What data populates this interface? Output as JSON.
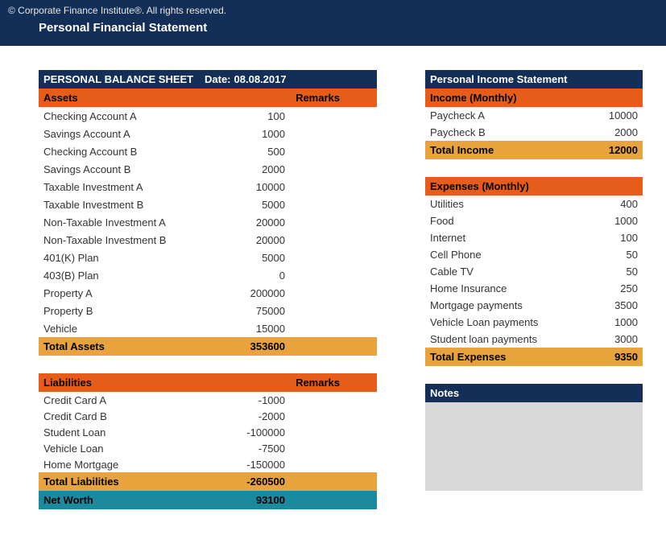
{
  "copyright": "© Corporate Finance Institute®. All rights reserved.",
  "pageTitle": "Personal Financial Statement",
  "balance": {
    "headerLeft": "PERSONAL BALANCE SHEET",
    "headerDatePrefix": "Date:",
    "headerDate": "08.08.2017",
    "assetsHeader": "Assets",
    "remarksHeader": "Remarks",
    "assets": [
      {
        "label": "Checking Account A",
        "value": "100"
      },
      {
        "label": "Savings Account A",
        "value": "1000"
      },
      {
        "label": "Checking Account B",
        "value": "500"
      },
      {
        "label": "Savings Account B",
        "value": "2000"
      },
      {
        "label": "Taxable Investment A",
        "value": "10000"
      },
      {
        "label": "Taxable Investment B",
        "value": "5000"
      },
      {
        "label": "Non-Taxable Investment A",
        "value": "20000"
      },
      {
        "label": "Non-Taxable Investment B",
        "value": "20000"
      },
      {
        "label": "401(K) Plan",
        "value": "5000"
      },
      {
        "label": "403(B) Plan",
        "value": "0"
      },
      {
        "label": "Property A",
        "value": "200000"
      },
      {
        "label": "Property B",
        "value": "75000"
      },
      {
        "label": "Vehicle",
        "value": "15000"
      }
    ],
    "totalAssetsLabel": "Total Assets",
    "totalAssetsValue": "353600",
    "liabilitiesHeader": "Liabilities",
    "liabilities": [
      {
        "label": "Credit Card A",
        "value": "-1000"
      },
      {
        "label": "Credit Card B",
        "value": "-2000"
      },
      {
        "label": "Student Loan",
        "value": "-100000"
      },
      {
        "label": "Vehicle Loan",
        "value": "-7500"
      },
      {
        "label": "Home Mortgage",
        "value": "-150000"
      }
    ],
    "totalLiabilitiesLabel": "Total Liabilities",
    "totalLiabilitiesValue": "-260500",
    "netWorthLabel": "Net Worth",
    "netWorthValue": "93100"
  },
  "income": {
    "header": "Personal Income Statement",
    "incomeHeader": "Income (Monthly)",
    "items": [
      {
        "label": "Paycheck A",
        "value": "10000"
      },
      {
        "label": "Paycheck B",
        "value": "2000"
      }
    ],
    "totalLabel": "Total Income",
    "totalValue": "12000"
  },
  "expenses": {
    "header": "Expenses (Monthly)",
    "items": [
      {
        "label": "Utilities",
        "value": "400"
      },
      {
        "label": "Food",
        "value": "1000"
      },
      {
        "label": "Internet",
        "value": "100"
      },
      {
        "label": "Cell Phone",
        "value": "50"
      },
      {
        "label": "Cable TV",
        "value": "50"
      },
      {
        "label": "Home Insurance",
        "value": "250"
      },
      {
        "label": "Mortgage payments",
        "value": "3500"
      },
      {
        "label": "Vehicle Loan payments",
        "value": "1000"
      },
      {
        "label": "Student loan payments",
        "value": "3000"
      }
    ],
    "totalLabel": "Total Expenses",
    "totalValue": "9350"
  },
  "notes": {
    "header": "Notes"
  },
  "colors": {
    "darkblue": "#132e57",
    "orange": "#e65c19",
    "amber": "#e8a33d",
    "teal": "#1b8a9e",
    "notesGrey": "#d9d9d9"
  }
}
